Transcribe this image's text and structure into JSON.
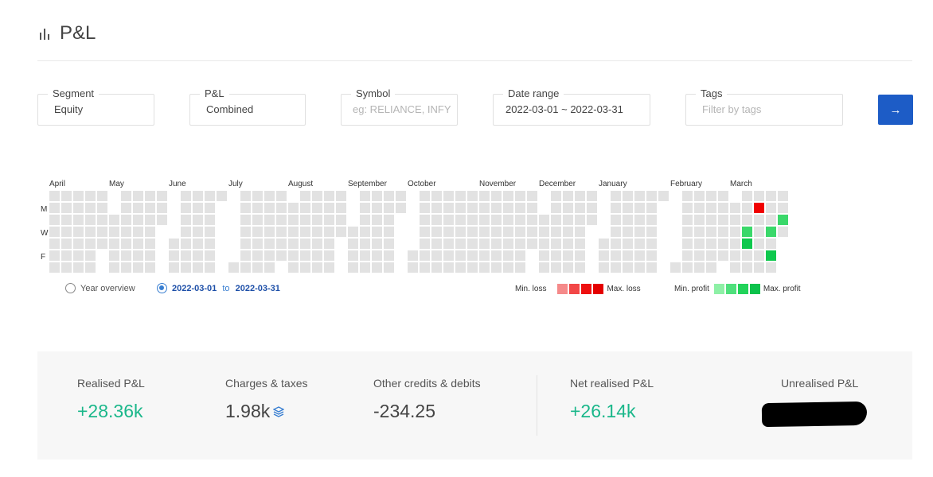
{
  "header": {
    "title": "P&L",
    "icon": "bar-chart-icon"
  },
  "filters": {
    "segment": {
      "label": "Segment",
      "value": "Equity"
    },
    "pnl": {
      "label": "P&L",
      "value": "Combined"
    },
    "symbol": {
      "label": "Symbol",
      "placeholder": "eg: RELIANCE, INFY"
    },
    "date_range": {
      "label": "Date range",
      "value": "2022-03-01 ~ 2022-03-31"
    },
    "tags": {
      "label": "Tags",
      "placeholder": "Filter by tags"
    },
    "submit_icon": "arrow-right-icon"
  },
  "heatmap": {
    "months": [
      "April",
      "May",
      "June",
      "July",
      "August",
      "September",
      "October",
      "November",
      "December",
      "January",
      "February",
      "March"
    ],
    "day_labels": [
      "M",
      "W",
      "F"
    ],
    "colors": {
      "empty": "#e2e2e2",
      "loss_max": "#f00000",
      "profit_max": "#0ec84d"
    },
    "highlighted_cells": [
      {
        "week": 2,
        "day": 1,
        "level": "loss-max"
      },
      {
        "week": 4,
        "day": 2,
        "level": "profit-3"
      },
      {
        "week": 1,
        "day": 3,
        "level": "profit-3"
      },
      {
        "week": 3,
        "day": 3,
        "level": "profit-3"
      },
      {
        "week": 1,
        "day": 4,
        "level": "profit-max"
      },
      {
        "week": 3,
        "day": 5,
        "level": "profit-max"
      }
    ]
  },
  "view": {
    "year_overview": "Year overview",
    "range_from": "2022-03-01",
    "range_to_word": "to",
    "range_to": "2022-03-31"
  },
  "legend": {
    "min_loss": "Min. loss",
    "max_loss": "Max. loss",
    "min_profit": "Min. profit",
    "max_profit": "Max. profit",
    "loss_colors": [
      "#f58a8a",
      "#f24747",
      "#ee1010",
      "#e40000"
    ],
    "profit_colors": [
      "#8ef0a6",
      "#4fe07c",
      "#22d35a",
      "#0cc24b"
    ]
  },
  "summary": {
    "realised": {
      "label": "Realised P&L",
      "value": "+28.36k"
    },
    "charges": {
      "label": "Charges & taxes",
      "value": "1.98k",
      "icon": "layers-icon"
    },
    "other": {
      "label": "Other credits & debits",
      "value": "-234.25"
    },
    "net": {
      "label": "Net realised P&L",
      "value": "+26.14k"
    },
    "unrealised": {
      "label": "Unrealised P&L"
    }
  }
}
